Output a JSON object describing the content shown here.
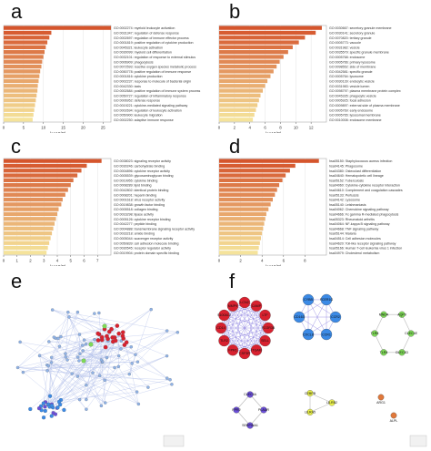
{
  "panel_letters": [
    "a",
    "b",
    "c",
    "d",
    "e",
    "f"
  ],
  "chart_data": [
    {
      "panel": "a",
      "type": "bar",
      "orientation": "horizontal",
      "xlabel": "-log10(P)",
      "xlim": [
        0,
        27
      ],
      "xticks": [
        "0",
        "5",
        "10",
        "15",
        "20",
        "25"
      ],
      "categories": [
        "GO:0002274: myeloid leukocyte activation",
        "GO:0031347: regulation of defense response",
        "GO:0002697: regulation of immune effector process",
        "GO:0001819: positive regulation of cytokine production",
        "GO:0045321: leukocyte activation",
        "GO:0030099: myeloid cell differentiation",
        "GO:0032101: regulation of response to external stimulus",
        "GO:0006909: phagocytosis",
        "GO:0072593: reactive oxygen species metabolic process",
        "GO:0050778: positive regulation of immune response",
        "GO:0001816: cytokine production",
        "GO:0002237: response to molecule of bacterial origin",
        "GO:0042330: taxis",
        "GO:0002684: positive regulation of immune system process",
        "GO:0050727: regulation of inflammatory response",
        "GO:0006952: defense response",
        "GO:0019221: cytokine-mediated signaling pathway",
        "GO:0002694: regulation of leukocyte activation",
        "GO:0050900: leukocyte migration",
        "GO:0002250: adaptive immune response"
      ],
      "values": [
        27,
        12,
        11.5,
        11,
        10.6,
        10.3,
        10,
        9.7,
        9.5,
        9.2,
        9,
        8.8,
        8.6,
        8.5,
        8.3,
        8.1,
        7.9,
        7.7,
        7.5,
        7.3
      ]
    },
    {
      "panel": "b",
      "type": "bar",
      "orientation": "horizontal",
      "xlabel": "-log10(P)",
      "xlim": [
        0,
        14
      ],
      "xticks": [
        "0",
        "2",
        "4",
        "6",
        "8",
        "10",
        "12"
      ],
      "categories": [
        "GO:0030667: secretory granule membrane",
        "GO:0030141: secretory granule",
        "GO:0070820: tertiary granule",
        "GO:0005773: vacuole",
        "GO:0031982: vesicle",
        "GO:0035579: specific granule membrane",
        "GO:0005768: endosome",
        "GO:0005766: primary lysosome",
        "GO:0098552: side of membrane",
        "GO:0042581: specific granule",
        "GO:0005764: lysosome",
        "GO:0030139: endocytic vesicle",
        "GO:0031983: vesicle lumen",
        "GO:0098797: plasma membrane protein complex",
        "GO:0045335: phagocytic vesicle",
        "GO:0005925: focal adhesion",
        "GO:0009897: external side of plasma membrane",
        "GO:0005769: early endosome",
        "GO:0005765: lysosomal membrane",
        "GO:0010008: endosome membrane"
      ],
      "values": [
        13.4,
        12.6,
        11.2,
        10.4,
        9.6,
        9,
        8.4,
        7.9,
        7.5,
        7.1,
        6.7,
        6.3,
        6,
        5.7,
        5.4,
        5.2,
        5,
        4.8,
        4.6,
        4.4
      ]
    },
    {
      "panel": "c",
      "type": "bar",
      "orientation": "horizontal",
      "xlabel": "-log10(P)",
      "xlim": [
        0,
        8
      ],
      "xticks": [
        "0",
        "1",
        "2",
        "3",
        "4",
        "5",
        "6",
        "7"
      ],
      "categories": [
        "GO:0038023: signaling receptor activity",
        "GO:0030246: carbohydrate binding",
        "GO:0004896: cytokine receptor activity",
        "GO:0005539: glycosaminoglycan binding",
        "GO:0019955: cytokine binding",
        "GO:0008289: lipid binding",
        "GO:0042802: identical protein binding",
        "GO:0008201: heparin binding",
        "GO:0001618: virus receptor activity",
        "GO:0019838: growth factor binding",
        "GO:0005518: collagen binding",
        "GO:0016298: lipase activity",
        "GO:0005126: cytokine receptor binding",
        "GO:0042277: peptide binding",
        "GO:0004888: transmembrane signaling receptor activity",
        "GO:0033218: amide binding",
        "GO:0005044: scavenger receptor activity",
        "GO:0050839: cell adhesion molecule binding",
        "GO:0030545: receptor regulator activity",
        "GO:0019904: protein domain specific binding"
      ],
      "values": [
        7.3,
        6.2,
        5.8,
        5.5,
        5.2,
        5,
        4.8,
        4.6,
        4.4,
        4.3,
        4.1,
        4,
        3.9,
        3.8,
        3.7,
        3.6,
        3.5,
        3.4,
        3.3,
        3.2
      ]
    },
    {
      "panel": "d",
      "type": "bar",
      "orientation": "horizontal",
      "xlabel": "-log10(P)",
      "xlim": [
        0,
        10
      ],
      "xticks": [
        "0",
        "2",
        "4",
        "6",
        "8"
      ],
      "categories": [
        "hsa05150: Staphylococcus aureus infection",
        "hsa04145: Phagosome",
        "hsa04380: Osteoclast differentiation",
        "hsa04640: Hematopoietic cell lineage",
        "hsa05152: Tuberculosis",
        "hsa04060: Cytokine-cytokine receptor interaction",
        "hsa04610: Complement and coagulation cascades",
        "hsa05133: Pertussis",
        "hsa04142: Lysosome",
        "hsa05140: Leishmaniasis",
        "hsa04062: Chemokine signaling pathway",
        "hsa04666: Fc gamma R-mediated phagocytosis",
        "hsa05323: Rheumatoid arthritis",
        "hsa04064: NF-kappa B signaling pathway",
        "hsa04668: TNF signaling pathway",
        "hsa05144: Malaria",
        "hsa04514: Cell adhesion molecules",
        "hsa04620: Toll-like receptor signaling pathway",
        "hsa05166: Human T-cell leukemia virus 1 infection",
        "hsa04979: Cholesterol metabolism"
      ],
      "values": [
        9.3,
        7.1,
        6.6,
        6.2,
        5.9,
        5.6,
        5.4,
        5.2,
        5,
        4.8,
        4.6,
        4.4,
        4.3,
        4.2,
        4.1,
        4,
        3.9,
        3.8,
        3.7,
        3.6
      ]
    }
  ],
  "network_f": {
    "cluster1_labels": [
      "FCGR3B",
      "SELL",
      "ITGAM",
      "CSF3R",
      "FPR1",
      "TLR2",
      "CD14",
      "S100A12",
      "MMP9",
      "LCN2",
      "CAMP",
      "LTF"
    ],
    "cluster2_labels": [
      "CCR2",
      "CCR1",
      "CXCL8",
      "CD163",
      "CYBB",
      "FCER1G"
    ],
    "cluster3_labels": [
      "CLEC4E",
      "CLEC4D",
      "TLR4",
      "TLR8",
      "MNDA",
      "AQP9"
    ],
    "cluster4_labels": [
      "PLAUR",
      "SERPINA1",
      "FPR2",
      "CLEC5A"
    ],
    "cluster5_labels": [
      "LILRB2",
      "LILRA5",
      "CEBPB"
    ],
    "cluster6_labels": [
      "ARG1",
      "ALPL"
    ]
  },
  "colors": {
    "bar_dark": "#d5552c",
    "bar_light": "#f5e39b",
    "network_edge": "#aab8e8",
    "network_node_blue": "#8fb3e8",
    "node_red": "#d8212f",
    "node_blue": "#3b8ae6",
    "node_green": "#7ed957",
    "node_purple": "#6b4fd8",
    "node_yellow": "#e8ef4a",
    "node_orange": "#e0783a"
  }
}
